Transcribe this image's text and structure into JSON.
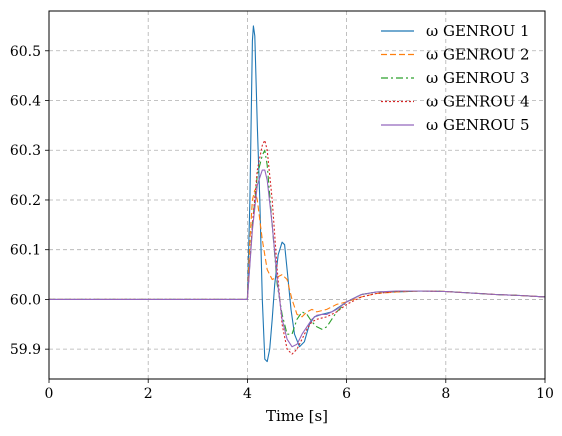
{
  "chart_data": {
    "type": "line",
    "xlabel": "Time [s]",
    "ylabel": "",
    "xlim": [
      0,
      10
    ],
    "ylim": [
      59.84,
      60.58
    ],
    "x_ticks": [
      0,
      2,
      4,
      6,
      8,
      10
    ],
    "y_ticks": [
      59.9,
      60.0,
      60.1,
      60.2,
      60.3,
      60.4,
      60.5
    ],
    "grid": true,
    "legend_position": "top-right",
    "series": [
      {
        "name": "ω GENROU 1",
        "color": "#1f77b4",
        "dash": "solid",
        "x": [
          0,
          4.0,
          4.05,
          4.1,
          4.12,
          4.15,
          4.2,
          4.25,
          4.3,
          4.35,
          4.4,
          4.45,
          4.5,
          4.55,
          4.62,
          4.7,
          4.75,
          4.8,
          4.88,
          4.95,
          5.05,
          5.15,
          5.25,
          5.35,
          5.5,
          5.7,
          6.0,
          6.3,
          6.6,
          7.0,
          7.5,
          8.0,
          8.5,
          9.0,
          9.5,
          10.0
        ],
        "y": [
          60.0,
          60.0,
          60.2,
          60.52,
          60.55,
          60.53,
          60.35,
          60.2,
          60.0,
          59.88,
          59.875,
          59.9,
          59.96,
          60.03,
          60.09,
          60.115,
          60.11,
          60.06,
          59.98,
          59.93,
          59.905,
          59.915,
          59.95,
          59.965,
          59.97,
          59.975,
          59.995,
          60.01,
          60.015,
          60.015,
          60.017,
          60.016,
          60.013,
          60.01,
          60.008,
          60.005
        ]
      },
      {
        "name": "ω GENROU 2",
        "color": "#ff7f0e",
        "dash": "6,3",
        "x": [
          0,
          4.0,
          4.05,
          4.1,
          4.15,
          4.2,
          4.3,
          4.4,
          4.5,
          4.6,
          4.7,
          4.8,
          4.9,
          5.0,
          5.1,
          5.2,
          5.3,
          5.4,
          5.6,
          5.8,
          6.0,
          6.3,
          6.6,
          7.0,
          7.5,
          8.0,
          8.5,
          9.0,
          9.5,
          10.0
        ],
        "y": [
          60.0,
          60.0,
          60.12,
          60.2,
          60.22,
          60.2,
          60.12,
          60.06,
          60.04,
          60.045,
          60.05,
          60.04,
          60.0,
          59.97,
          59.965,
          59.975,
          59.98,
          59.975,
          59.98,
          59.99,
          59.995,
          60.005,
          60.012,
          60.015,
          60.017,
          60.016,
          60.013,
          60.01,
          60.008,
          60.005
        ]
      },
      {
        "name": "ω GENROU 3",
        "color": "#2ca02c",
        "dash": "7,3,2,3",
        "x": [
          0,
          4.0,
          4.1,
          4.2,
          4.3,
          4.35,
          4.4,
          4.5,
          4.6,
          4.7,
          4.8,
          4.9,
          5.0,
          5.1,
          5.2,
          5.3,
          5.4,
          5.5,
          5.6,
          5.8,
          6.0,
          6.3,
          6.6,
          7.0,
          7.5,
          8.0,
          8.5,
          9.0,
          9.5,
          10.0
        ],
        "y": [
          60.0,
          60.0,
          60.15,
          60.25,
          60.29,
          60.3,
          60.27,
          60.15,
          60.03,
          59.97,
          59.93,
          59.93,
          59.96,
          59.975,
          59.97,
          59.955,
          59.945,
          59.94,
          59.945,
          59.975,
          59.995,
          60.01,
          60.015,
          60.016,
          60.017,
          60.016,
          60.013,
          60.01,
          60.008,
          60.005
        ]
      },
      {
        "name": "ω GENROU 4",
        "color": "#d62728",
        "dash": "2,2",
        "x": [
          0,
          4.0,
          4.1,
          4.2,
          4.3,
          4.35,
          4.4,
          4.5,
          4.6,
          4.7,
          4.8,
          4.9,
          5.0,
          5.1,
          5.2,
          5.3,
          5.4,
          5.6,
          5.8,
          6.0,
          6.3,
          6.6,
          7.0,
          7.5,
          8.0,
          8.5,
          9.0,
          9.5,
          10.0
        ],
        "y": [
          60.0,
          60.0,
          60.15,
          60.26,
          60.31,
          60.32,
          60.3,
          60.2,
          60.06,
          59.95,
          59.9,
          59.89,
          59.9,
          59.92,
          59.94,
          59.955,
          59.96,
          59.965,
          59.975,
          59.99,
          60.005,
          60.012,
          60.016,
          60.017,
          60.016,
          60.013,
          60.01,
          60.008,
          60.005
        ]
      },
      {
        "name": "ω GENROU 5",
        "color": "#9467bd",
        "dash": "solid",
        "x": [
          0,
          4.0,
          4.1,
          4.2,
          4.3,
          4.35,
          4.4,
          4.5,
          4.6,
          4.7,
          4.8,
          4.9,
          5.0,
          5.1,
          5.2,
          5.3,
          5.4,
          5.5,
          5.6,
          5.8,
          6.0,
          6.3,
          6.6,
          7.0,
          7.5,
          8.0,
          8.5,
          9.0,
          9.5,
          10.0
        ],
        "y": [
          60.0,
          60.0,
          60.14,
          60.23,
          60.26,
          60.26,
          60.24,
          60.15,
          60.04,
          59.96,
          59.92,
          59.905,
          59.91,
          59.93,
          59.945,
          59.96,
          59.968,
          59.97,
          59.97,
          59.98,
          59.995,
          60.01,
          60.015,
          60.017,
          60.017,
          60.016,
          60.013,
          60.01,
          60.008,
          60.005
        ]
      }
    ]
  }
}
